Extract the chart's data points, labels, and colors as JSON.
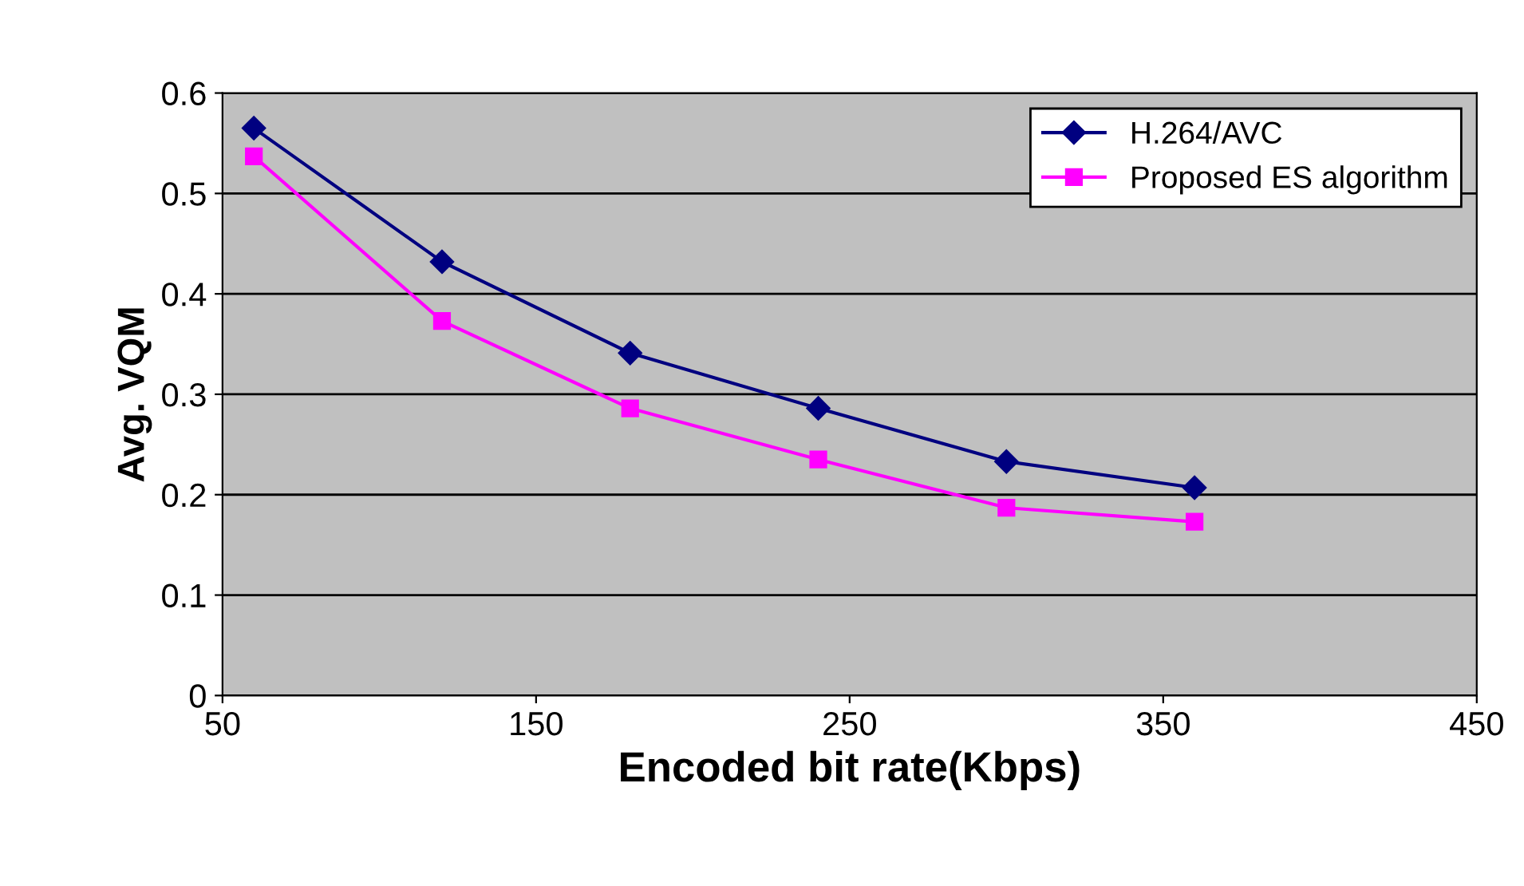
{
  "chart_data": {
    "type": "line",
    "xlabel": "Encoded bit rate(Kbps)",
    "ylabel": "Avg. VQM",
    "x": [
      60,
      120,
      180,
      240,
      300,
      360
    ],
    "series": [
      {
        "name": "H.264/AVC",
        "color": "#000080",
        "marker": "diamond",
        "values": [
          0.565,
          0.432,
          0.341,
          0.286,
          0.233,
          0.207
        ]
      },
      {
        "name": "Proposed ES algorithm",
        "color": "#ff00ff",
        "marker": "square",
        "values": [
          0.537,
          0.373,
          0.286,
          0.235,
          0.187,
          0.173
        ]
      }
    ],
    "xlim": [
      50,
      450
    ],
    "xticks": [
      50,
      150,
      250,
      350,
      450
    ],
    "ylim": [
      0,
      0.6
    ],
    "yticks": [
      0,
      0.1,
      0.2,
      0.3,
      0.4,
      0.5,
      0.6
    ],
    "grid": "y",
    "legend": "top right",
    "line_style": "solid"
  }
}
